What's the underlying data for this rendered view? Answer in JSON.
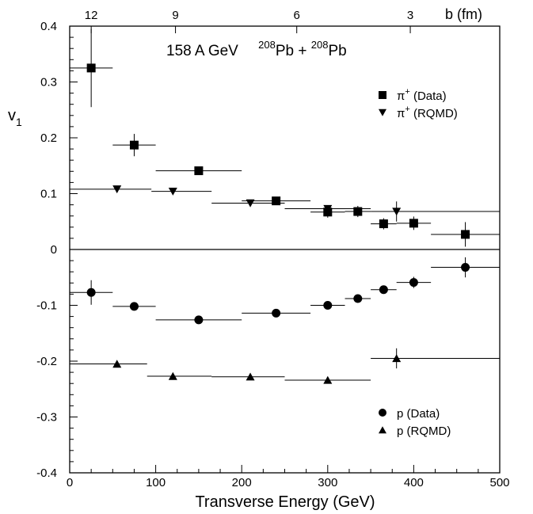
{
  "chart_data": {
    "type": "scatter",
    "annotation_main": "158 A GeV",
    "annotation_nucleus1_mass": "208",
    "annotation_nucleus1": "Pb + ",
    "annotation_nucleus2_mass": "208",
    "annotation_nucleus2": "Pb",
    "xlabel": "Transverse Energy (GeV)",
    "ylabel": "v",
    "ylabel_sub": "1",
    "top_axis_label": "b  (fm)",
    "xlim": [
      0,
      500
    ],
    "ylim": [
      -0.4,
      0.4
    ],
    "x_ticks": [
      0,
      100,
      200,
      300,
      400,
      500
    ],
    "y_ticks": [
      -0.4,
      -0.3,
      -0.2,
      -0.1,
      0,
      0.1,
      0.2,
      0.3,
      0.4
    ],
    "y_tick_labels": [
      "-0.4",
      "-0.3",
      "-0.2",
      "-0.1",
      "0",
      "0.1",
      "0.2",
      "0.3",
      "0.4"
    ],
    "top_ticks": [
      {
        "label": "12",
        "x": 25
      },
      {
        "label": "9",
        "x": 123
      },
      {
        "label": "6",
        "x": 264
      },
      {
        "label": "3",
        "x": 396
      }
    ],
    "zero_line": true,
    "grid": false,
    "legend_position": "right",
    "series": [
      {
        "name": "π⁺ (Data)",
        "label": "π",
        "label_sup": "+",
        "label_suffix": " (Data)",
        "marker": "square",
        "legend_group": "upper",
        "points": [
          {
            "x": 25,
            "y": 0.325,
            "xerr": [
              0,
              50
            ],
            "yerr": 0.07
          },
          {
            "x": 75,
            "y": 0.187,
            "xerr": [
              50,
              100
            ],
            "yerr": 0.02
          },
          {
            "x": 150,
            "y": 0.141,
            "xerr": [
              100,
              200
            ],
            "yerr": 0.006
          },
          {
            "x": 240,
            "y": 0.087,
            "xerr": [
              200,
              280
            ],
            "yerr": 0.006
          },
          {
            "x": 300,
            "y": 0.067,
            "xerr": [
              280,
              320
            ],
            "yerr": 0.01
          },
          {
            "x": 335,
            "y": 0.068,
            "xerr": [
              320,
              350
            ],
            "yerr": 0.01
          },
          {
            "x": 365,
            "y": 0.046,
            "xerr": [
              350,
              380
            ],
            "yerr": 0.01
          },
          {
            "x": 400,
            "y": 0.047,
            "xerr": [
              380,
              420
            ],
            "yerr": 0.012
          },
          {
            "x": 460,
            "y": 0.027,
            "xerr": [
              420,
              500
            ],
            "yerr": 0.022
          }
        ]
      },
      {
        "name": "π⁺ (RQMD)",
        "label": "π",
        "label_sup": "+",
        "label_suffix": " (RQMD)",
        "marker": "triangle-down",
        "legend_group": "upper",
        "points": [
          {
            "x": 55,
            "y": 0.108,
            "xerr": [
              0,
              95
            ],
            "yerr": 0.003
          },
          {
            "x": 120,
            "y": 0.104,
            "xerr": [
              95,
              165
            ],
            "yerr": 0.003
          },
          {
            "x": 210,
            "y": 0.083,
            "xerr": [
              165,
              250
            ],
            "yerr": 0.004
          },
          {
            "x": 300,
            "y": 0.073,
            "xerr": [
              250,
              350
            ],
            "yerr": 0.005
          },
          {
            "x": 380,
            "y": 0.068,
            "xerr": [
              350,
              500
            ],
            "yerr": 0.018
          }
        ]
      },
      {
        "name": "p (Data)",
        "label": "p",
        "label_sup": "",
        "label_suffix": " (Data)",
        "marker": "circle",
        "legend_group": "lower",
        "points": [
          {
            "x": 25,
            "y": -0.077,
            "xerr": [
              0,
              50
            ],
            "yerr": 0.022
          },
          {
            "x": 75,
            "y": -0.102,
            "xerr": [
              50,
              100
            ],
            "yerr": 0.004
          },
          {
            "x": 150,
            "y": -0.126,
            "xerr": [
              100,
              200
            ],
            "yerr": 0.002
          },
          {
            "x": 240,
            "y": -0.114,
            "xerr": [
              200,
              280
            ],
            "yerr": 0.002
          },
          {
            "x": 300,
            "y": -0.1,
            "xerr": [
              280,
              320
            ],
            "yerr": 0.006
          },
          {
            "x": 335,
            "y": -0.088,
            "xerr": [
              320,
              350
            ],
            "yerr": 0.007
          },
          {
            "x": 365,
            "y": -0.072,
            "xerr": [
              350,
              380
            ],
            "yerr": 0.007
          },
          {
            "x": 400,
            "y": -0.059,
            "xerr": [
              380,
              420
            ],
            "yerr": 0.01
          },
          {
            "x": 460,
            "y": -0.032,
            "xerr": [
              420,
              500
            ],
            "yerr": 0.018
          }
        ]
      },
      {
        "name": "p (RQMD)",
        "label": "p",
        "label_sup": "",
        "label_suffix": " (RQMD)",
        "marker": "triangle-up",
        "legend_group": "lower",
        "points": [
          {
            "x": 55,
            "y": -0.205,
            "xerr": [
              0,
              90
            ],
            "yerr": 0.003
          },
          {
            "x": 120,
            "y": -0.227,
            "xerr": [
              90,
              165
            ],
            "yerr": 0.003
          },
          {
            "x": 210,
            "y": -0.228,
            "xerr": [
              165,
              250
            ],
            "yerr": 0.003
          },
          {
            "x": 300,
            "y": -0.234,
            "xerr": [
              250,
              350
            ],
            "yerr": 0.003
          },
          {
            "x": 380,
            "y": -0.195,
            "xerr": [
              350,
              500
            ],
            "yerr": 0.018
          }
        ]
      }
    ]
  }
}
